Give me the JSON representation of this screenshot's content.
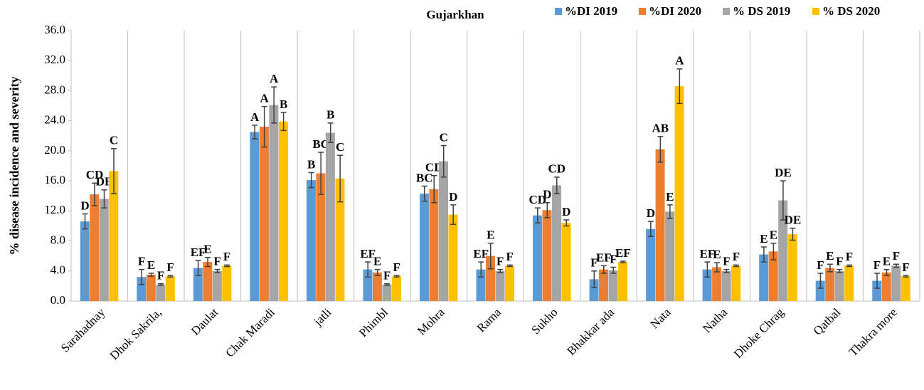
{
  "chart_data": {
    "type": "bar",
    "title": "Gujarkhan",
    "y_label": "% disease incidence and severity",
    "categories": [
      "Sarahadnay",
      "Dhok Sakrila,",
      "Daulat",
      "Chak Maradi",
      "jatli",
      "Phimbl",
      "Mohra",
      "Rama",
      "Sukho",
      "Bhakkar ada",
      "Nata",
      "Natha",
      "Dhoke Chrag",
      "Qatbal",
      "Thakra more"
    ],
    "series": [
      {
        "name": "%DI 2019",
        "color": "#5b9bd5",
        "values": [
          10.6,
          3.2,
          4.4,
          22.5,
          16.1,
          4.2,
          14.3,
          4.2,
          11.4,
          2.9,
          9.6,
          4.2,
          6.2,
          2.7,
          2.7
        ],
        "errors": [
          1.0,
          1.0,
          1.0,
          0.9,
          1.0,
          1.0,
          1.0,
          1.0,
          1.0,
          1.1,
          1.0,
          1.0,
          1.0,
          1.0,
          1.0
        ],
        "letters": [
          "D",
          "F",
          "EF",
          "A",
          "B",
          "EF",
          "BC",
          "EF",
          "CD",
          "F",
          "D",
          "EF",
          "E",
          "F",
          "F"
        ]
      },
      {
        "name": "%DI 2020",
        "color": "#ed7d31",
        "values": [
          14.2,
          3.5,
          5.2,
          23.2,
          17.0,
          3.8,
          14.9,
          6.0,
          12.1,
          4.2,
          20.2,
          4.5,
          6.6,
          4.4,
          3.8
        ],
        "errors": [
          1.5,
          0.2,
          0.6,
          2.7,
          2.8,
          0.4,
          1.8,
          1.7,
          1.0,
          0.5,
          1.7,
          0.6,
          1.1,
          0.5,
          0.4
        ],
        "letters": [
          "CD",
          "E",
          "E",
          "A",
          "BC",
          "E",
          "CD",
          "E",
          "D",
          "EF",
          "AB",
          "E",
          "E",
          "E",
          "E"
        ]
      },
      {
        "name": "% DS 2019",
        "color": "#a5a5a5",
        "values": [
          13.6,
          2.2,
          4.0,
          26.1,
          22.4,
          2.2,
          18.6,
          4.0,
          15.4,
          4.1,
          11.9,
          4.0,
          13.4,
          4.0,
          4.7
        ],
        "errors": [
          1.2,
          0.1,
          0.2,
          2.4,
          1.3,
          0.1,
          2.1,
          0.2,
          1.1,
          0.4,
          0.9,
          0.2,
          2.6,
          0.2,
          0.2
        ],
        "letters": [
          "DE",
          "F",
          "F",
          "A",
          "B",
          "F",
          "C",
          "F",
          "CD",
          "F",
          "E",
          "F",
          "DE",
          "F",
          "F"
        ]
      },
      {
        "name": "% DS 2020",
        "color": "#ffc000",
        "values": [
          17.3,
          3.3,
          4.7,
          23.9,
          16.3,
          3.3,
          11.5,
          4.7,
          10.4,
          5.2,
          28.6,
          4.7,
          8.9,
          4.7,
          3.3
        ],
        "errors": [
          3.0,
          0.1,
          0.1,
          1.2,
          3.1,
          0.1,
          1.3,
          0.1,
          0.4,
          0.1,
          2.3,
          0.1,
          0.8,
          0.1,
          0.1
        ],
        "letters": [
          "C",
          "F",
          "F",
          "B",
          "C",
          "F",
          "D",
          "F",
          "D",
          "EF",
          "A",
          "F",
          "DE",
          "F",
          "F"
        ]
      }
    ],
    "ylim": [
      0,
      36
    ],
    "yticks": [
      {
        "value": 0,
        "label": "0.0"
      },
      {
        "value": 4,
        "label": "4.0"
      },
      {
        "value": 8,
        "label": "8.0"
      },
      {
        "value": 12,
        "label": "12.0"
      },
      {
        "value": 16,
        "label": "16.0"
      },
      {
        "value": 20,
        "label": "20.0"
      },
      {
        "value": 24,
        "label": "24.0"
      },
      {
        "value": 28,
        "label": "28.0"
      },
      {
        "value": 32,
        "label": "32.0"
      },
      {
        "value": 36,
        "label": "36.0"
      }
    ],
    "legend": "top-right"
  }
}
